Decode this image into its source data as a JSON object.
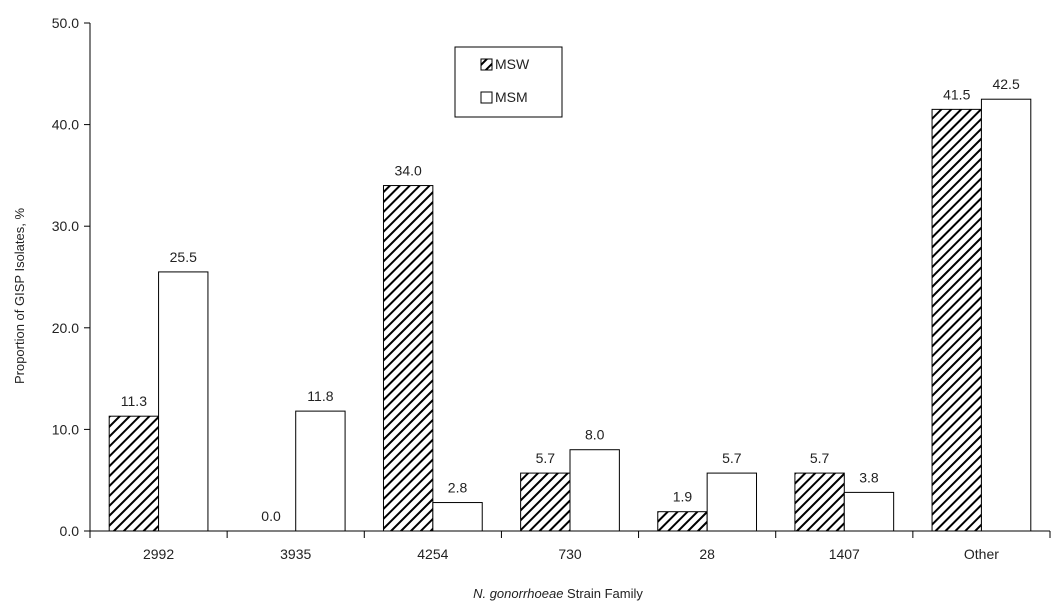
{
  "chart_data": {
    "type": "bar",
    "title": "",
    "xlabel_italic": "N. gonorrhoeae",
    "xlabel_rest": " Strain Family",
    "ylabel": "Proportion of GISP Isolates, %",
    "categories": [
      "2992",
      "3935",
      "4254",
      "730",
      "28",
      "1407",
      "Other"
    ],
    "series": [
      {
        "name": "MSW",
        "values": [
          11.3,
          0.0,
          34.0,
          5.7,
          1.9,
          5.7,
          41.5
        ],
        "labels": [
          "11.3",
          "0.0",
          "34.0",
          "5.7",
          "1.9",
          "5.7",
          "41.5"
        ],
        "pattern": "hatched"
      },
      {
        "name": "MSM",
        "values": [
          25.5,
          11.8,
          2.8,
          8.0,
          5.7,
          3.8,
          42.5
        ],
        "labels": [
          "25.5",
          "11.8",
          "2.8",
          "8.0",
          "5.7",
          "3.8",
          "42.5"
        ],
        "pattern": "open"
      }
    ],
    "ylim": [
      0,
      50
    ],
    "yticks": [
      0,
      10,
      20,
      30,
      40,
      50
    ],
    "ytick_labels": [
      "0.0",
      "10.0",
      "20.0",
      "30.0",
      "40.0",
      "50.0"
    ],
    "grid": false,
    "legend_position": "top-center",
    "colors": {
      "bar_stroke": "#000000",
      "hatch": "#000000",
      "open_fill": "#ffffff"
    }
  }
}
